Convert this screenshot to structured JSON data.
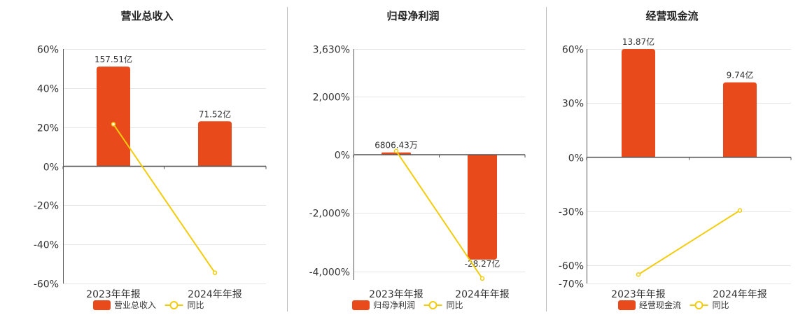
{
  "colors": {
    "bar": "#E84A1B",
    "line": "#F2CC0C",
    "grid": "#E6E6E6",
    "axis": "#555555",
    "divider": "#BBBBBB"
  },
  "chart_data": [
    {
      "type": "bar",
      "title": "营业总收入",
      "categories": [
        "2023年年报",
        "2024年年报"
      ],
      "series": [
        {
          "name": "营业总收入",
          "type": "bar",
          "values": [
            51.0,
            23.0
          ],
          "labels": [
            "157.51亿",
            "71.52亿"
          ]
        },
        {
          "name": "同比",
          "type": "line",
          "values": [
            21.5,
            -54.5
          ]
        }
      ],
      "ylim": [
        -60,
        60
      ],
      "yticks": [
        60,
        40,
        20,
        0,
        -20,
        -40,
        -60
      ],
      "ytick_labels": [
        "60%",
        "40%",
        "20%",
        "0%",
        "-20%",
        "-40%",
        "-60%"
      ],
      "grid": true,
      "legend": "bottom"
    },
    {
      "type": "bar",
      "title": "归母净利润",
      "categories": [
        "2023年年报",
        "2024年年报"
      ],
      "series": [
        {
          "name": "归母净利润",
          "type": "bar",
          "values": [
            80,
            -3600
          ],
          "labels": [
            "6806.43万",
            "-28.27亿"
          ]
        },
        {
          "name": "同比",
          "type": "line",
          "values": [
            130,
            -4250
          ]
        }
      ],
      "ylim": [
        -4300,
        3630
      ],
      "yticks": [
        3630,
        2000,
        0,
        -2000,
        -4000
      ],
      "ytick_labels": [
        "3,630%",
        "2,000%",
        "0%",
        "-2,000%",
        "-4,000%"
      ],
      "grid": true,
      "legend": "bottom"
    },
    {
      "type": "bar",
      "title": "经营现金流",
      "categories": [
        "2023年年报",
        "2024年年报"
      ],
      "series": [
        {
          "name": "经营现金流",
          "type": "bar",
          "values": [
            60,
            41.5
          ],
          "labels": [
            "13.87亿",
            "9.74亿"
          ]
        },
        {
          "name": "同比",
          "type": "line",
          "values": [
            -65,
            -29.5
          ]
        }
      ],
      "ylim": [
        -70,
        60
      ],
      "yticks": [
        60,
        30,
        0,
        -30,
        -60,
        -70
      ],
      "ytick_labels": [
        "60%",
        "30%",
        "0%",
        "-30%",
        "-60%",
        "-70%"
      ],
      "grid": true,
      "legend": "bottom"
    }
  ]
}
